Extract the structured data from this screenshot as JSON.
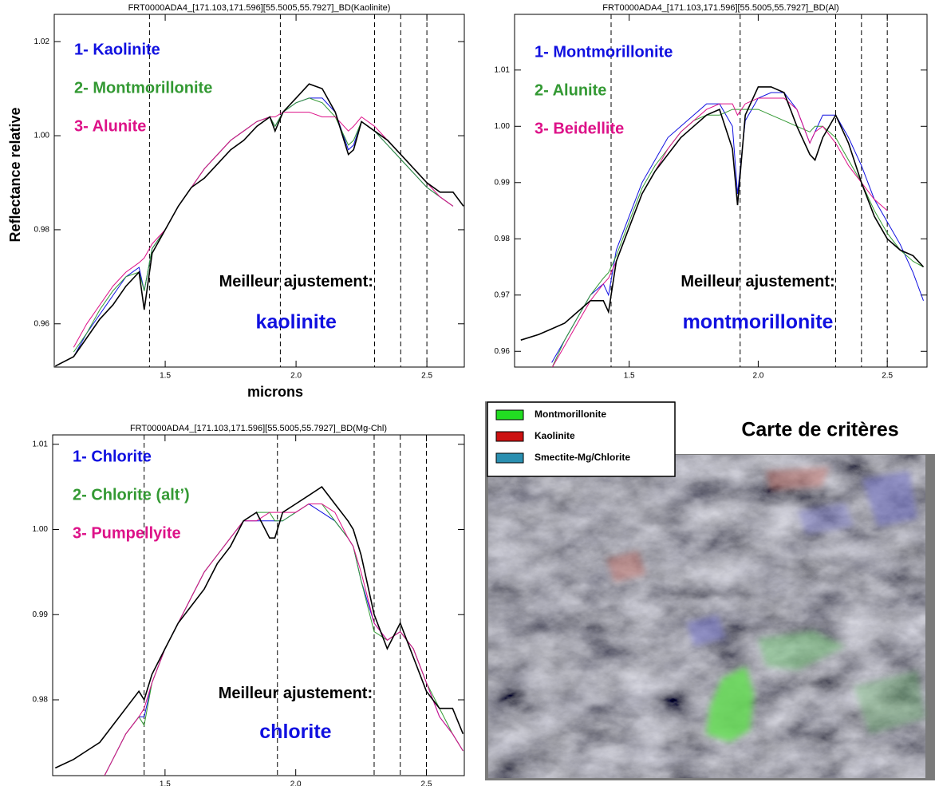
{
  "chart_data": [
    {
      "type": "line",
      "title": "FRT0000ADA4_[171.103,171.596][55.5005,55.7927]_BD(Kaolinite)",
      "x_label": "microns",
      "y_label": "Reflectance relative",
      "annotation": "Meilleur ajustement:",
      "best_fit": "kaolinite",
      "xlim": [
        1.076,
        2.643
      ],
      "ylim": [
        0.9508,
        1.0258
      ],
      "xticks": [
        1.5,
        {
          "value": 2,
          "label": "2.0"
        },
        2.5
      ],
      "yticks": [
        0.96,
        0.98,
        {
          "value": 1,
          "label": "1.00"
        },
        1.02
      ],
      "vlines": [
        1.44,
        1.94,
        2.3,
        2.4,
        2.5
      ],
      "x": [
        1.08,
        1.15,
        1.2,
        1.25,
        1.3,
        1.35,
        1.4,
        1.42,
        1.45,
        1.5,
        1.55,
        1.6,
        1.65,
        1.7,
        1.75,
        1.8,
        1.85,
        1.9,
        1.92,
        1.95,
        2.0,
        2.05,
        2.1,
        2.15,
        2.2,
        2.22,
        2.25,
        2.3,
        2.35,
        2.4,
        2.45,
        2.5,
        2.55,
        2.6,
        2.64
      ],
      "series": [
        {
          "color": "#000000",
          "values": [
            0.951,
            0.953,
            0.957,
            0.961,
            0.964,
            0.968,
            0.971,
            0.963,
            0.975,
            0.98,
            0.985,
            0.989,
            0.991,
            0.994,
            0.997,
            0.999,
            1.002,
            1.004,
            1.001,
            1.005,
            1.008,
            1.011,
            1.01,
            1.005,
            0.996,
            0.997,
            1.003,
            1.001,
            0.999,
            0.996,
            0.993,
            0.99,
            0.988,
            0.988,
            0.985
          ]
        },
        {
          "name": "1- Kaolinite",
          "color": "#1010e0",
          "values": [
            null,
            0.953,
            0.958,
            0.962,
            0.966,
            0.97,
            0.972,
            0.967,
            0.976,
            0.98,
            0.985,
            0.989,
            0.993,
            0.996,
            0.999,
            1.001,
            1.003,
            1.004,
            1.002,
            1.005,
            1.007,
            1.008,
            1.008,
            1.005,
            0.997,
            0.998,
            1.003,
            1.001,
            0.998,
            0.995,
            0.992,
            0.989,
            0.987,
            0.985,
            null
          ]
        },
        {
          "name": "2- Montmorillonite",
          "color": "#339933",
          "values": [
            null,
            0.954,
            0.958,
            0.963,
            0.967,
            0.97,
            0.971,
            0.967,
            0.976,
            0.98,
            0.985,
            0.989,
            0.993,
            0.996,
            0.999,
            1.001,
            1.003,
            1.004,
            1.002,
            1.005,
            1.007,
            1.008,
            1.007,
            1.004,
            0.998,
            0.999,
            1.003,
            1.001,
            0.998,
            0.995,
            0.992,
            0.989,
            0.987,
            0.985,
            null
          ]
        },
        {
          "name": "3- Alunite",
          "color": "#dd1188",
          "values": [
            null,
            0.955,
            0.96,
            0.964,
            0.968,
            0.971,
            0.973,
            0.974,
            0.977,
            0.98,
            0.985,
            0.989,
            0.993,
            0.996,
            0.999,
            1.001,
            1.003,
            1.004,
            1.004,
            1.005,
            1.005,
            1.005,
            1.004,
            1.004,
            1.001,
            1.002,
            1.004,
            1.002,
            0.999,
            0.996,
            0.993,
            0.99,
            0.987,
            0.985,
            null
          ]
        }
      ]
    },
    {
      "type": "line",
      "title": "FRT0000ADA4_[171.103,171.596][55.5005,55.7927]_BD(Al)",
      "annotation": "Meilleur ajustement:",
      "best_fit": "montmorillonite",
      "xlim": [
        1.056,
        2.654
      ],
      "ylim": [
        0.9572,
        1.0199
      ],
      "xticks": [
        1.5,
        {
          "value": 2,
          "label": "2.0"
        },
        2.5
      ],
      "yticks": [
        0.96,
        0.97,
        0.98,
        0.99,
        {
          "value": 1,
          "label": "1.00"
        },
        1.01
      ],
      "vlines": [
        1.43,
        1.93,
        2.3,
        2.4,
        2.5
      ],
      "x": [
        1.08,
        1.15,
        1.2,
        1.25,
        1.3,
        1.35,
        1.4,
        1.42,
        1.45,
        1.5,
        1.55,
        1.6,
        1.65,
        1.7,
        1.75,
        1.8,
        1.85,
        1.9,
        1.92,
        1.95,
        2.0,
        2.05,
        2.1,
        2.15,
        2.2,
        2.22,
        2.25,
        2.3,
        2.35,
        2.4,
        2.45,
        2.5,
        2.55,
        2.6,
        2.64
      ],
      "series": [
        {
          "color": "#000000",
          "values": [
            0.962,
            0.963,
            0.964,
            0.965,
            0.967,
            0.969,
            0.969,
            0.967,
            0.976,
            0.982,
            0.988,
            0.992,
            0.995,
            0.998,
            1.0,
            1.002,
            1.003,
            0.996,
            0.986,
            1.002,
            1.007,
            1.007,
            1.006,
            1.0,
            0.995,
            0.994,
            0.998,
            1.002,
            0.997,
            0.99,
            0.984,
            0.98,
            0.978,
            0.977,
            0.975
          ]
        },
        {
          "name": "1- Montmorillonite",
          "color": "#1010e0",
          "values": [
            null,
            null,
            0.958,
            0.962,
            0.966,
            0.97,
            0.972,
            0.97,
            0.978,
            0.984,
            0.99,
            0.994,
            0.998,
            1.0,
            1.002,
            1.004,
            1.004,
            1.0,
            0.988,
            1.001,
            1.005,
            1.006,
            1.006,
            1.003,
            0.997,
            0.999,
            1.002,
            1.002,
            0.998,
            0.993,
            0.987,
            0.983,
            0.979,
            0.974,
            0.969
          ]
        },
        {
          "name": "2- Alunite",
          "color": "#339933",
          "values": [
            null,
            null,
            0.957,
            0.962,
            0.966,
            0.97,
            0.973,
            0.974,
            0.977,
            0.983,
            0.989,
            0.993,
            0.996,
            0.999,
            1.001,
            1.002,
            1.002,
            1.003,
            1.003,
            1.003,
            1.003,
            1.002,
            1.001,
            1.0,
            0.999,
            1.0,
            1.0,
            0.998,
            0.994,
            0.99,
            0.985,
            0.981,
            0.978,
            0.976,
            0.975
          ]
        },
        {
          "name": "3- Beidellite",
          "color": "#dd1188",
          "values": [
            null,
            null,
            0.957,
            0.961,
            0.965,
            0.969,
            0.972,
            0.973,
            0.976,
            0.982,
            0.988,
            0.992,
            0.996,
            0.999,
            1.001,
            1.003,
            1.004,
            1.004,
            1.002,
            1.004,
            1.005,
            1.005,
            1.005,
            1.003,
            0.997,
            0.999,
            1.0,
            0.997,
            0.993,
            0.99,
            0.987,
            0.985,
            null,
            null,
            null
          ]
        }
      ]
    },
    {
      "type": "line",
      "title": "FRT0000ADA4_[171.103,171.596][55.5005,55.7927]_BD(Mg-Chl)",
      "annotation": "Meilleur ajustement:",
      "best_fit": "chlorite",
      "xlim": [
        1.07,
        2.645
      ],
      "ylim": [
        0.9711,
        1.0111
      ],
      "xticks": [
        1.5,
        {
          "value": 2,
          "label": "2.0"
        },
        2.5
      ],
      "yticks": [
        0.98,
        0.99,
        {
          "value": 1,
          "label": "1.00"
        },
        1.01
      ],
      "vlines": [
        1.42,
        1.93,
        2.3,
        2.4,
        2.5
      ],
      "x": [
        1.08,
        1.15,
        1.2,
        1.25,
        1.3,
        1.35,
        1.4,
        1.42,
        1.45,
        1.5,
        1.55,
        1.6,
        1.65,
        1.7,
        1.75,
        1.8,
        1.85,
        1.9,
        1.92,
        1.95,
        2.0,
        2.05,
        2.1,
        2.15,
        2.2,
        2.22,
        2.25,
        2.3,
        2.35,
        2.4,
        2.45,
        2.5,
        2.55,
        2.6,
        2.64
      ],
      "series": [
        {
          "color": "#000000",
          "values": [
            0.972,
            0.973,
            0.974,
            0.975,
            0.977,
            0.979,
            0.981,
            0.98,
            0.983,
            0.986,
            0.989,
            0.991,
            0.993,
            0.996,
            0.998,
            1.001,
            1.002,
            0.999,
            0.999,
            1.002,
            1.003,
            1.004,
            1.005,
            1.003,
            1.001,
            1.0,
            0.997,
            0.99,
            0.986,
            0.989,
            0.985,
            0.981,
            0.979,
            0.979,
            0.976
          ]
        },
        {
          "name": "1- Chlorite",
          "color": "#1010e0",
          "values": [
            null,
            null,
            null,
            0.97,
            0.973,
            0.976,
            0.978,
            0.978,
            0.982,
            0.986,
            0.989,
            0.992,
            0.995,
            0.997,
            0.999,
            1.001,
            1.001,
            1.001,
            1.001,
            1.001,
            1.002,
            1.003,
            1.002,
            1.001,
            0.999,
            0.998,
            0.994,
            0.989,
            0.987,
            0.988,
            0.986,
            0.982,
            0.978,
            0.976,
            0.974
          ]
        },
        {
          "name": "2- Chlorite (alt’)",
          "color": "#339933",
          "values": [
            null,
            null,
            null,
            0.97,
            0.973,
            0.976,
            0.978,
            0.977,
            0.982,
            0.986,
            0.989,
            0.992,
            0.995,
            0.997,
            0.999,
            1.001,
            1.002,
            1.002,
            1.001,
            1.001,
            1.002,
            1.003,
            1.003,
            1.001,
            0.999,
            0.998,
            0.994,
            0.988,
            0.987,
            0.988,
            0.986,
            0.982,
            0.979,
            0.976,
            0.974
          ]
        },
        {
          "name": "3- Pumpellyite",
          "color": "#dd1188",
          "values": [
            null,
            null,
            null,
            0.97,
            0.973,
            0.976,
            0.978,
            0.979,
            0.982,
            0.986,
            0.989,
            0.992,
            0.995,
            0.997,
            0.999,
            1.001,
            1.001,
            1.002,
            1.002,
            1.002,
            1.002,
            1.003,
            1.003,
            1.002,
            0.999,
            0.998,
            0.995,
            0.989,
            0.987,
            0.988,
            0.986,
            0.982,
            0.978,
            0.976,
            0.974
          ]
        }
      ]
    }
  ],
  "map": {
    "title": "Carte de critères",
    "legend": [
      {
        "label": "Montmorillonite",
        "color": "#22dd22"
      },
      {
        "label": "Kaolinite",
        "color": "#cc1111"
      },
      {
        "label": "Smectite-Mg/Chlorite",
        "color": "#2a8fb0"
      }
    ]
  }
}
